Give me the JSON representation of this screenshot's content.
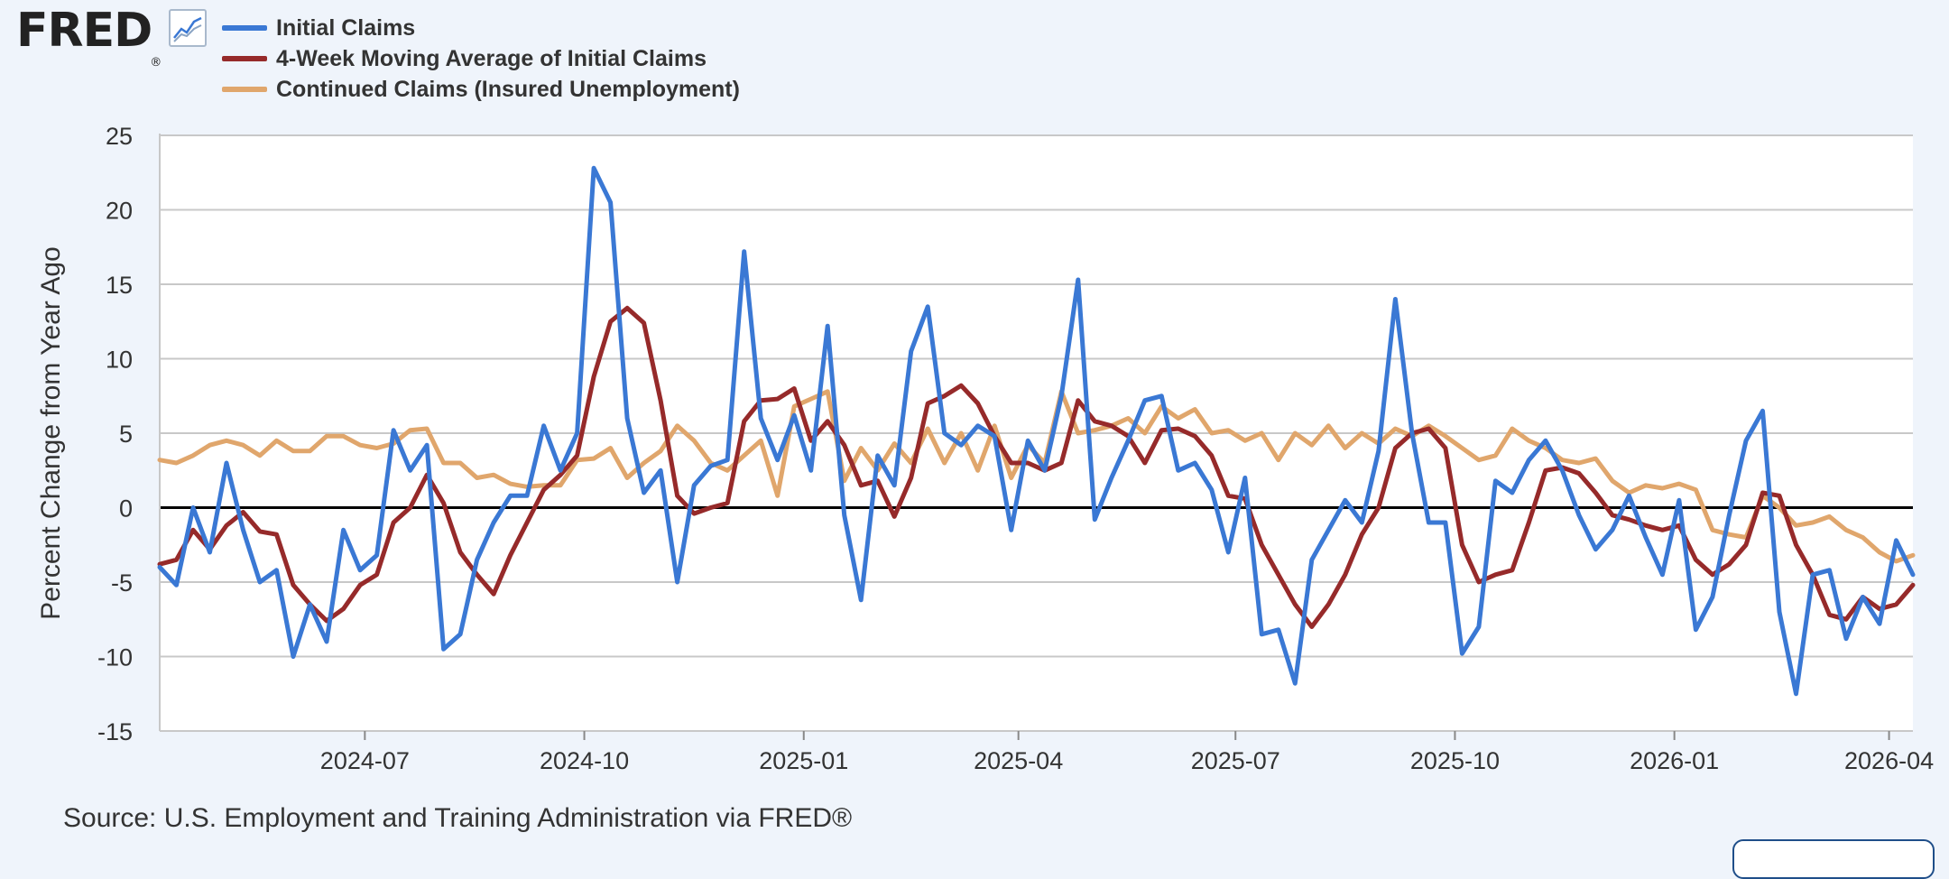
{
  "header": {
    "logo_text": "FRED",
    "logo_mark": "®",
    "logo_icon": "line-graph-icon"
  },
  "footer": {
    "source": "Source: U.S. Employment and Training Administration via FRED®"
  },
  "colors": {
    "initial_claims": "#3a78d4",
    "moving_average": "#962a2a",
    "continued_claims": "#e0a66c",
    "zero_line": "#000000",
    "grid": "#c8c8c8",
    "plot_bg": "#ffffff"
  },
  "chart_data": {
    "type": "line",
    "title": "",
    "xlabel": "",
    "ylabel": "Percent Change from Year Ago",
    "ylim": [
      -15,
      25
    ],
    "yticks": [
      25,
      20,
      15,
      10,
      5,
      0,
      -5,
      -10,
      -15
    ],
    "xlim": [
      "2024-04-06",
      "2026-04-11"
    ],
    "xticks": [
      "2024-07",
      "2024-10",
      "2025-01",
      "2025-04",
      "2025-07",
      "2025-10",
      "2026-01",
      "2026-04"
    ],
    "grid": true,
    "legend": "top-left",
    "x_interval": "weekly",
    "x_start": "2024-04-06",
    "series": [
      {
        "name": "Initial Claims",
        "color": "#3a78d4",
        "values": [
          -4.0,
          -5.2,
          0.0,
          -3.0,
          3.0,
          -1.5,
          -5.0,
          -4.2,
          -10.0,
          -6.5,
          -9.0,
          -1.5,
          -4.2,
          -3.2,
          5.2,
          2.5,
          4.2,
          -9.5,
          -8.5,
          -3.5,
          -1.0,
          0.8,
          0.8,
          5.5,
          2.5,
          5.0,
          22.8,
          20.5,
          6.0,
          1.0,
          2.5,
          -5.0,
          1.5,
          2.8,
          3.2,
          17.2,
          6.0,
          3.2,
          6.2,
          2.5,
          12.2,
          -0.5,
          -6.2,
          3.5,
          1.5,
          10.5,
          13.5,
          5.0,
          4.2,
          5.5,
          4.8,
          -1.5,
          4.5,
          2.5,
          7.5,
          15.3,
          -0.8,
          2.0,
          4.5,
          7.2,
          7.5,
          2.5,
          3.0,
          1.2,
          -3.0,
          2.0,
          -8.5,
          -8.2,
          -11.8,
          -3.5,
          -1.5,
          0.5,
          -1.0,
          3.8,
          14.0,
          5.0,
          -1.0,
          -1.0,
          -9.8,
          -8.0,
          1.8,
          1.0,
          3.2,
          4.5,
          2.5,
          -0.5,
          -2.8,
          -1.5,
          0.8,
          -2.0,
          -4.5,
          0.5,
          -8.2,
          -6.0,
          -0.5,
          4.5,
          6.5,
          -7.0,
          -12.5,
          -4.5,
          -4.2,
          -8.8,
          -6.0,
          -7.8,
          -2.2,
          -4.5
        ]
      },
      {
        "name": "4-Week Moving Average of Initial Claims",
        "color": "#962a2a",
        "values": [
          -3.8,
          -3.5,
          -1.5,
          -2.8,
          -1.2,
          -0.3,
          -1.6,
          -1.8,
          -5.2,
          -6.5,
          -7.6,
          -6.8,
          -5.2,
          -4.5,
          -1.0,
          0.0,
          2.2,
          0.3,
          -3.0,
          -4.5,
          -5.8,
          -3.2,
          -1.0,
          1.2,
          2.2,
          3.5,
          8.8,
          12.5,
          13.4,
          12.4,
          7.2,
          0.8,
          -0.4,
          0.0,
          0.3,
          5.8,
          7.2,
          7.3,
          8.0,
          4.5,
          5.8,
          4.2,
          1.5,
          1.8,
          -0.6,
          2.0,
          7.0,
          7.5,
          8.2,
          7.0,
          4.8,
          3.0,
          3.0,
          2.5,
          3.0,
          7.2,
          5.8,
          5.5,
          4.8,
          3.0,
          5.2,
          5.3,
          4.8,
          3.5,
          0.8,
          0.6,
          -2.5,
          -4.5,
          -6.5,
          -8.0,
          -6.5,
          -4.5,
          -1.8,
          0.0,
          4.0,
          5.0,
          5.3,
          4.0,
          -2.5,
          -5.0,
          -4.5,
          -4.2,
          -1.0,
          2.5,
          2.7,
          2.3,
          1.0,
          -0.5,
          -0.8,
          -1.2,
          -1.5,
          -1.2,
          -3.5,
          -4.5,
          -3.8,
          -2.5,
          1.0,
          0.8,
          -2.5,
          -4.5,
          -7.2,
          -7.5,
          -6.0,
          -6.8,
          -6.5,
          -5.2
        ]
      },
      {
        "name": "Continued Claims (Insured Unemployment)",
        "color": "#e0a66c",
        "values": [
          3.2,
          3.0,
          3.5,
          4.2,
          4.5,
          4.2,
          3.5,
          4.5,
          3.8,
          3.8,
          4.8,
          4.8,
          4.2,
          4.0,
          4.3,
          5.2,
          5.3,
          3.0,
          3.0,
          2.0,
          2.2,
          1.6,
          1.4,
          1.5,
          1.5,
          3.2,
          3.3,
          4.0,
          2.0,
          3.0,
          3.8,
          5.5,
          4.5,
          3.0,
          2.5,
          3.5,
          4.5,
          0.8,
          6.8,
          7.3,
          7.8,
          1.8,
          4.0,
          2.5,
          4.3,
          3.0,
          5.3,
          3.0,
          5.0,
          2.5,
          5.5,
          2.0,
          4.2,
          3.0,
          7.8,
          5.0,
          5.2,
          5.5,
          6.0,
          5.0,
          6.8,
          6.0,
          6.6,
          5.0,
          5.2,
          4.5,
          5.0,
          3.2,
          5.0,
          4.2,
          5.5,
          4.0,
          5.0,
          4.3,
          5.3,
          4.8,
          5.5,
          4.8,
          4.0,
          3.2,
          3.5,
          5.3,
          4.5,
          4.0,
          3.2,
          3.0,
          3.3,
          1.8,
          1.0,
          1.5,
          1.3,
          1.6,
          1.2,
          -1.5,
          -1.8,
          -2.0,
          0.8,
          0.0,
          -1.2,
          -1.0,
          -0.6,
          -1.5,
          -2.0,
          -3.0,
          -3.6,
          -3.2
        ]
      }
    ]
  }
}
